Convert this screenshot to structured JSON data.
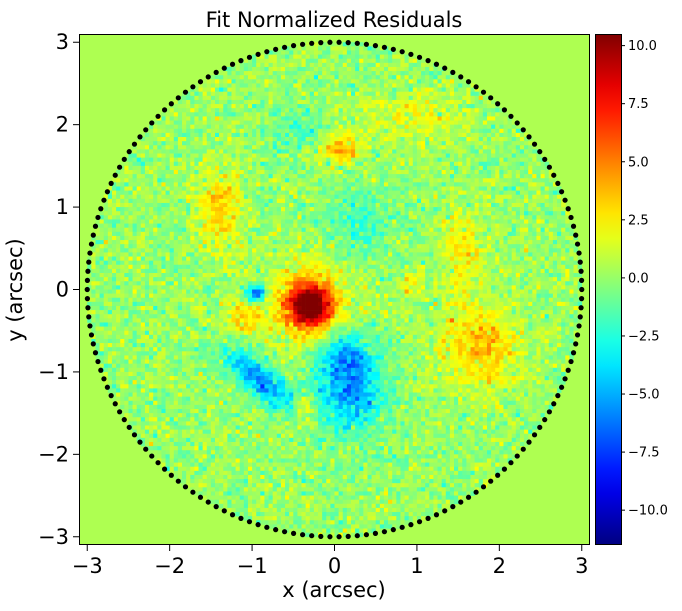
{
  "chart_data": {
    "type": "heatmap",
    "title": "Fit Normalized Residuals",
    "xlabel": "x (arcsec)",
    "ylabel": "y (arcsec)",
    "xlim": [
      -3.1,
      3.1
    ],
    "ylim": [
      -3.1,
      3.1
    ],
    "x_ticks": [
      -3,
      -2,
      -1,
      0,
      1,
      2,
      3
    ],
    "y_ticks": [
      -3,
      -2,
      -1,
      0,
      1,
      2,
      3
    ],
    "x_tick_labels": [
      "−3",
      "−2",
      "−1",
      "0",
      "1",
      "2",
      "3"
    ],
    "y_tick_labels": [
      "−3",
      "−2",
      "−1",
      "0",
      "1",
      "2",
      "3"
    ],
    "mask_radius": 3.0,
    "background_value": 0.5,
    "colormap": "jet",
    "colorbar": {
      "vmin": -11.5,
      "vmax": 10.5,
      "ticks": [
        10.0,
        7.5,
        5.0,
        2.5,
        0.0,
        -2.5,
        -5.0,
        -7.5,
        -10.0
      ],
      "tick_labels": [
        "10.0",
        "7.5",
        "5.0",
        "2.5",
        "0.0",
        "−2.5",
        "−5.0",
        "−7.5",
        "−10.0"
      ]
    },
    "features": [
      {
        "x": -0.3,
        "y": -0.2,
        "amplitude": 10.0,
        "sigma_x": 0.18,
        "sigma_y": 0.18
      },
      {
        "x": -0.3,
        "y": -0.15,
        "amplitude": 3.5,
        "sigma_x": 0.35,
        "sigma_y": 0.35
      },
      {
        "x": -0.95,
        "y": -0.05,
        "amplitude": -8.0,
        "sigma_x": 0.08,
        "sigma_y": 0.07
      },
      {
        "x": -1.1,
        "y": -0.35,
        "amplitude": 3.0,
        "sigma_x": 0.15,
        "sigma_y": 0.15
      },
      {
        "x": -0.9,
        "y": -1.1,
        "amplitude": -6.0,
        "sigma_x": 0.35,
        "sigma_y": 0.13,
        "angle_deg": -40
      },
      {
        "x": 0.2,
        "y": -1.2,
        "amplitude": -5.5,
        "sigma_x": 0.28,
        "sigma_y": 0.38
      },
      {
        "x": 0.1,
        "y": -0.8,
        "amplitude": -3.0,
        "sigma_x": 0.2,
        "sigma_y": 0.2
      },
      {
        "x": 0.05,
        "y": 1.7,
        "amplitude": 4.0,
        "sigma_x": 0.18,
        "sigma_y": 0.13
      },
      {
        "x": -1.4,
        "y": 0.95,
        "amplitude": 3.2,
        "sigma_x": 0.18,
        "sigma_y": 0.35
      },
      {
        "x": 1.75,
        "y": -0.7,
        "amplitude": 3.5,
        "sigma_x": 0.35,
        "sigma_y": 0.35
      },
      {
        "x": 1.55,
        "y": 0.5,
        "amplitude": 2.4,
        "sigma_x": 0.18,
        "sigma_y": 0.4
      },
      {
        "x": 0.95,
        "y": 0.1,
        "amplitude": 2.2,
        "sigma_x": 0.12,
        "sigma_y": 0.12
      },
      {
        "x": -0.35,
        "y": -1.45,
        "amplitude": 3.0,
        "sigma_x": 0.1,
        "sigma_y": 0.14
      },
      {
        "x": 1.0,
        "y": 2.1,
        "amplitude": 1.8,
        "sigma_x": 0.5,
        "sigma_y": 0.2
      },
      {
        "x": -0.4,
        "y": 1.9,
        "amplitude": -1.5,
        "sigma_x": 0.3,
        "sigma_y": 0.2
      },
      {
        "x": 0.3,
        "y": 0.8,
        "amplitude": -2.0,
        "sigma_x": 0.3,
        "sigma_y": 0.3
      }
    ]
  }
}
